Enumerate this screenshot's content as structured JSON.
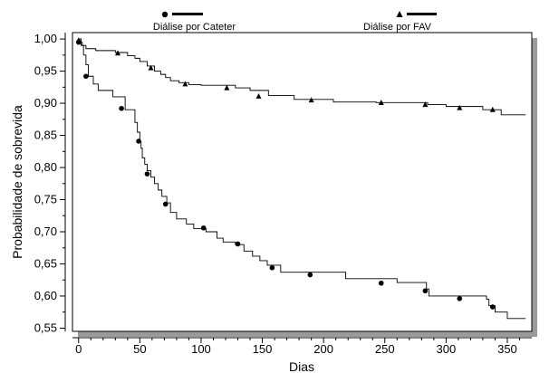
{
  "chart_data": {
    "type": "line",
    "title": "",
    "xlabel": "Dias",
    "ylabel": "Probabilidade de sobrevida",
    "xlim": [
      -5,
      370
    ],
    "ylim": [
      0.545,
      1.01
    ],
    "xticks": [
      0,
      50,
      100,
      150,
      200,
      250,
      300,
      350
    ],
    "yticks": [
      0.55,
      0.6,
      0.65,
      0.7,
      0.75,
      0.8,
      0.85,
      0.9,
      0.95,
      1.0
    ],
    "ytick_labels": [
      "0,55",
      "0,60",
      "0,65",
      "0,70",
      "0,75",
      "0,80",
      "0,85",
      "0,90",
      "0,95",
      "1,00"
    ],
    "grid": false,
    "legend_position": "top",
    "series": [
      {
        "name": "Diálise por Cateter",
        "marker": "circle",
        "color": "#000000",
        "steps": [
          [
            0,
            1.0
          ],
          [
            2,
            0.99
          ],
          [
            4,
            0.975
          ],
          [
            6,
            0.96
          ],
          [
            8,
            0.942
          ],
          [
            12,
            0.93
          ],
          [
            16,
            0.92
          ],
          [
            28,
            0.91
          ],
          [
            38,
            0.89
          ],
          [
            46,
            0.87
          ],
          [
            48,
            0.855
          ],
          [
            50,
            0.84
          ],
          [
            51,
            0.83
          ],
          [
            52,
            0.815
          ],
          [
            54,
            0.805
          ],
          [
            56,
            0.795
          ],
          [
            59,
            0.785
          ],
          [
            62,
            0.775
          ],
          [
            65,
            0.765
          ],
          [
            68,
            0.755
          ],
          [
            72,
            0.745
          ],
          [
            75,
            0.73
          ],
          [
            80,
            0.72
          ],
          [
            88,
            0.712
          ],
          [
            94,
            0.705
          ],
          [
            104,
            0.7
          ],
          [
            113,
            0.69
          ],
          [
            118,
            0.684
          ],
          [
            128,
            0.68
          ],
          [
            135,
            0.67
          ],
          [
            142,
            0.662
          ],
          [
            148,
            0.655
          ],
          [
            154,
            0.648
          ],
          [
            165,
            0.637
          ],
          [
            190,
            0.637
          ],
          [
            218,
            0.627
          ],
          [
            260,
            0.621
          ],
          [
            284,
            0.611
          ],
          [
            286,
            0.6
          ],
          [
            333,
            0.595
          ],
          [
            335,
            0.585
          ],
          [
            340,
            0.575
          ],
          [
            350,
            0.565
          ],
          [
            365,
            0.565
          ]
        ],
        "markers": [
          [
            0,
            0.995
          ],
          [
            6,
            0.942
          ],
          [
            35,
            0.892
          ],
          [
            49,
            0.841
          ],
          [
            56,
            0.79
          ],
          [
            71,
            0.743
          ],
          [
            102,
            0.706
          ],
          [
            130,
            0.681
          ],
          [
            158,
            0.644
          ],
          [
            189,
            0.633
          ],
          [
            247,
            0.62
          ],
          [
            283,
            0.608
          ],
          [
            311,
            0.596
          ],
          [
            338,
            0.583
          ]
        ]
      },
      {
        "name": "Diálise por FAV",
        "marker": "triangle",
        "color": "#000000",
        "steps": [
          [
            0,
            1.0
          ],
          [
            2,
            0.995
          ],
          [
            3,
            0.99
          ],
          [
            6,
            0.985
          ],
          [
            14,
            0.982
          ],
          [
            30,
            0.979
          ],
          [
            40,
            0.974
          ],
          [
            46,
            0.97
          ],
          [
            50,
            0.965
          ],
          [
            56,
            0.958
          ],
          [
            62,
            0.95
          ],
          [
            67,
            0.945
          ],
          [
            71,
            0.94
          ],
          [
            75,
            0.935
          ],
          [
            82,
            0.932
          ],
          [
            90,
            0.929
          ],
          [
            100,
            0.928
          ],
          [
            128,
            0.924
          ],
          [
            140,
            0.92
          ],
          [
            155,
            0.912
          ],
          [
            176,
            0.906
          ],
          [
            208,
            0.902
          ],
          [
            243,
            0.901
          ],
          [
            275,
            0.901
          ],
          [
            285,
            0.898
          ],
          [
            300,
            0.895
          ],
          [
            330,
            0.89
          ],
          [
            345,
            0.882
          ],
          [
            365,
            0.882
          ]
        ],
        "markers": [
          [
            0,
            0.998
          ],
          [
            32,
            0.978
          ],
          [
            59,
            0.955
          ],
          [
            87,
            0.93
          ],
          [
            121,
            0.924
          ],
          [
            147,
            0.911
          ],
          [
            190,
            0.905
          ],
          [
            247,
            0.901
          ],
          [
            283,
            0.898
          ],
          [
            311,
            0.893
          ],
          [
            338,
            0.89
          ]
        ]
      }
    ]
  }
}
